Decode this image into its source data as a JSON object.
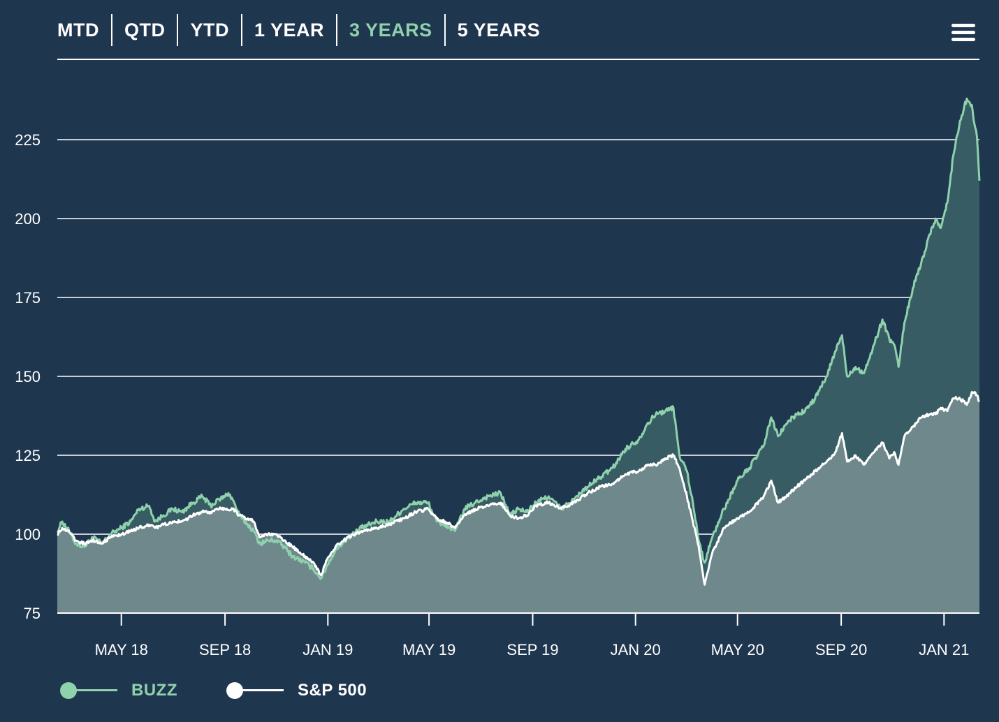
{
  "tabs": [
    {
      "label": "MTD",
      "active": false
    },
    {
      "label": "QTD",
      "active": false
    },
    {
      "label": "YTD",
      "active": false
    },
    {
      "label": "1 YEAR",
      "active": false
    },
    {
      "label": "3 YEARS",
      "active": true
    },
    {
      "label": "5 YEARS",
      "active": false
    }
  ],
  "menu_icon": "hamburger-menu-icon",
  "colors": {
    "background": "#1f364f",
    "buzz": "#8fd1ad",
    "sp500": "#ffffff",
    "buzz_fill": "#385c63",
    "sp500_fill": "#6e888b",
    "grid": "#ffffff"
  },
  "legend": [
    {
      "label": "BUZZ",
      "color": "#8fd1ad"
    },
    {
      "label": "S&P 500",
      "color": "#ffffff"
    }
  ],
  "chart_data": {
    "type": "area",
    "title": "",
    "xlabel": "",
    "ylabel": "",
    "ylim": [
      75,
      240
    ],
    "yticks": [
      75,
      100,
      125,
      150,
      175,
      200,
      225
    ],
    "xlim": [
      "2018-02-14",
      "2021-02-12"
    ],
    "xticks": [
      {
        "date": "2018-05-01",
        "label": "MAY 18"
      },
      {
        "date": "2018-09-01",
        "label": "SEP 18"
      },
      {
        "date": "2019-01-01",
        "label": "JAN 19"
      },
      {
        "date": "2019-05-01",
        "label": "MAY 19"
      },
      {
        "date": "2019-09-01",
        "label": "SEP 19"
      },
      {
        "date": "2020-01-01",
        "label": "JAN 20"
      },
      {
        "date": "2020-05-01",
        "label": "MAY 20"
      },
      {
        "date": "2020-09-01",
        "label": "SEP 20"
      },
      {
        "date": "2021-01-01",
        "label": "JAN 21"
      }
    ],
    "grid": true,
    "legend_position": "bottom-left",
    "series": [
      {
        "name": "BUZZ",
        "points": [
          [
            "2018-02-14",
            101
          ],
          [
            "2018-02-20",
            104
          ],
          [
            "2018-02-28",
            101
          ],
          [
            "2018-03-08",
            97
          ],
          [
            "2018-03-18",
            96
          ],
          [
            "2018-03-28",
            99
          ],
          [
            "2018-04-08",
            97
          ],
          [
            "2018-04-18",
            100
          ],
          [
            "2018-05-01",
            102
          ],
          [
            "2018-05-12",
            104
          ],
          [
            "2018-05-22",
            108
          ],
          [
            "2018-06-03",
            109
          ],
          [
            "2018-06-10",
            104
          ],
          [
            "2018-06-20",
            106
          ],
          [
            "2018-07-01",
            108
          ],
          [
            "2018-07-12",
            107
          ],
          [
            "2018-07-25",
            110
          ],
          [
            "2018-08-05",
            112
          ],
          [
            "2018-08-15",
            109
          ],
          [
            "2018-08-25",
            111
          ],
          [
            "2018-09-01",
            112
          ],
          [
            "2018-09-05",
            113
          ],
          [
            "2018-09-10",
            111
          ],
          [
            "2018-09-18",
            106
          ],
          [
            "2018-09-28",
            103
          ],
          [
            "2018-10-05",
            101
          ],
          [
            "2018-10-12",
            97
          ],
          [
            "2018-10-22",
            98
          ],
          [
            "2018-11-01",
            98
          ],
          [
            "2018-11-10",
            96
          ],
          [
            "2018-11-20",
            93
          ],
          [
            "2018-12-05",
            91
          ],
          [
            "2018-12-15",
            89
          ],
          [
            "2018-12-24",
            86
          ],
          [
            "2018-12-31",
            90
          ],
          [
            "2019-01-10",
            95
          ],
          [
            "2019-01-25",
            99
          ],
          [
            "2019-02-10",
            102
          ],
          [
            "2019-02-28",
            104
          ],
          [
            "2019-03-15",
            104
          ],
          [
            "2019-04-01",
            108
          ],
          [
            "2019-04-15",
            110
          ],
          [
            "2019-04-30",
            110
          ],
          [
            "2019-05-10",
            104
          ],
          [
            "2019-05-20",
            103
          ],
          [
            "2019-06-01",
            101
          ],
          [
            "2019-06-12",
            108
          ],
          [
            "2019-06-25",
            110
          ],
          [
            "2019-07-10",
            112
          ],
          [
            "2019-07-25",
            113
          ],
          [
            "2019-08-05",
            106
          ],
          [
            "2019-08-15",
            108
          ],
          [
            "2019-08-25",
            107
          ],
          [
            "2019-09-05",
            110
          ],
          [
            "2019-09-20",
            112
          ],
          [
            "2019-10-05",
            108
          ],
          [
            "2019-10-20",
            111
          ],
          [
            "2019-11-05",
            115
          ],
          [
            "2019-11-20",
            118
          ],
          [
            "2019-12-05",
            121
          ],
          [
            "2019-12-20",
            127
          ],
          [
            "2020-01-05",
            130
          ],
          [
            "2020-01-15",
            135
          ],
          [
            "2020-01-25",
            138
          ],
          [
            "2020-02-05",
            139
          ],
          [
            "2020-02-15",
            140
          ],
          [
            "2020-02-22",
            125
          ],
          [
            "2020-03-02",
            120
          ],
          [
            "2020-03-09",
            110
          ],
          [
            "2020-03-16",
            98
          ],
          [
            "2020-03-23",
            91
          ],
          [
            "2020-04-01",
            99
          ],
          [
            "2020-04-15",
            108
          ],
          [
            "2020-05-01",
            117
          ],
          [
            "2020-05-15",
            121
          ],
          [
            "2020-06-01",
            128
          ],
          [
            "2020-06-10",
            137
          ],
          [
            "2020-06-18",
            131
          ],
          [
            "2020-06-28",
            135
          ],
          [
            "2020-07-10",
            138
          ],
          [
            "2020-07-20",
            139
          ],
          [
            "2020-08-01",
            143
          ],
          [
            "2020-08-15",
            150
          ],
          [
            "2020-08-25",
            158
          ],
          [
            "2020-09-02",
            163
          ],
          [
            "2020-09-08",
            150
          ],
          [
            "2020-09-18",
            153
          ],
          [
            "2020-09-28",
            151
          ],
          [
            "2020-10-10",
            160
          ],
          [
            "2020-10-20",
            168
          ],
          [
            "2020-10-28",
            162
          ],
          [
            "2020-11-03",
            160
          ],
          [
            "2020-11-08",
            153
          ],
          [
            "2020-11-15",
            167
          ],
          [
            "2020-11-25",
            178
          ],
          [
            "2020-12-05",
            186
          ],
          [
            "2020-12-15",
            195
          ],
          [
            "2020-12-22",
            200
          ],
          [
            "2020-12-28",
            197
          ],
          [
            "2021-01-05",
            205
          ],
          [
            "2021-01-12",
            220
          ],
          [
            "2021-01-20",
            231
          ],
          [
            "2021-01-28",
            238
          ],
          [
            "2021-02-03",
            236
          ],
          [
            "2021-02-06",
            230
          ],
          [
            "2021-02-09",
            226
          ],
          [
            "2021-02-12",
            212
          ]
        ]
      },
      {
        "name": "S&P 500",
        "points": [
          [
            "2018-02-14",
            100
          ],
          [
            "2018-02-20",
            102
          ],
          [
            "2018-02-28",
            101
          ],
          [
            "2018-03-08",
            98
          ],
          [
            "2018-03-18",
            97
          ],
          [
            "2018-03-28",
            98
          ],
          [
            "2018-04-08",
            97
          ],
          [
            "2018-04-18",
            99
          ],
          [
            "2018-05-01",
            100
          ],
          [
            "2018-05-12",
            101
          ],
          [
            "2018-05-22",
            102
          ],
          [
            "2018-06-03",
            103
          ],
          [
            "2018-06-10",
            102
          ],
          [
            "2018-06-20",
            103
          ],
          [
            "2018-07-01",
            104
          ],
          [
            "2018-07-12",
            104
          ],
          [
            "2018-07-25",
            106
          ],
          [
            "2018-08-05",
            107
          ],
          [
            "2018-08-15",
            107
          ],
          [
            "2018-08-25",
            108
          ],
          [
            "2018-09-01",
            108
          ],
          [
            "2018-09-10",
            108
          ],
          [
            "2018-09-18",
            106
          ],
          [
            "2018-09-28",
            105
          ],
          [
            "2018-10-05",
            104
          ],
          [
            "2018-10-12",
            99
          ],
          [
            "2018-10-22",
            100
          ],
          [
            "2018-11-01",
            100
          ],
          [
            "2018-11-10",
            98
          ],
          [
            "2018-11-20",
            96
          ],
          [
            "2018-12-05",
            93
          ],
          [
            "2018-12-15",
            91
          ],
          [
            "2018-12-24",
            87
          ],
          [
            "2018-12-31",
            92
          ],
          [
            "2019-01-10",
            96
          ],
          [
            "2019-01-25",
            99
          ],
          [
            "2019-02-10",
            101
          ],
          [
            "2019-02-28",
            102
          ],
          [
            "2019-03-15",
            103
          ],
          [
            "2019-04-01",
            105
          ],
          [
            "2019-04-15",
            107
          ],
          [
            "2019-04-30",
            108
          ],
          [
            "2019-05-10",
            105
          ],
          [
            "2019-05-20",
            104
          ],
          [
            "2019-06-01",
            102
          ],
          [
            "2019-06-12",
            106
          ],
          [
            "2019-06-25",
            108
          ],
          [
            "2019-07-10",
            109
          ],
          [
            "2019-07-25",
            110
          ],
          [
            "2019-08-05",
            106
          ],
          [
            "2019-08-15",
            105
          ],
          [
            "2019-08-25",
            106
          ],
          [
            "2019-09-05",
            109
          ],
          [
            "2019-09-20",
            110
          ],
          [
            "2019-10-05",
            108
          ],
          [
            "2019-10-20",
            110
          ],
          [
            "2019-11-05",
            113
          ],
          [
            "2019-11-20",
            115
          ],
          [
            "2019-12-05",
            116
          ],
          [
            "2019-12-20",
            119
          ],
          [
            "2020-01-05",
            120
          ],
          [
            "2020-01-15",
            122
          ],
          [
            "2020-01-25",
            122
          ],
          [
            "2020-02-05",
            124
          ],
          [
            "2020-02-15",
            125
          ],
          [
            "2020-02-22",
            121
          ],
          [
            "2020-03-02",
            112
          ],
          [
            "2020-03-09",
            104
          ],
          [
            "2020-03-16",
            96
          ],
          [
            "2020-03-23",
            84
          ],
          [
            "2020-04-01",
            94
          ],
          [
            "2020-04-15",
            102
          ],
          [
            "2020-05-01",
            105
          ],
          [
            "2020-05-15",
            107
          ],
          [
            "2020-06-01",
            112
          ],
          [
            "2020-06-10",
            117
          ],
          [
            "2020-06-18",
            110
          ],
          [
            "2020-06-28",
            112
          ],
          [
            "2020-07-10",
            115
          ],
          [
            "2020-07-20",
            117
          ],
          [
            "2020-08-01",
            120
          ],
          [
            "2020-08-15",
            123
          ],
          [
            "2020-08-25",
            126
          ],
          [
            "2020-09-02",
            132
          ],
          [
            "2020-09-08",
            123
          ],
          [
            "2020-09-18",
            125
          ],
          [
            "2020-09-28",
            122
          ],
          [
            "2020-10-10",
            126
          ],
          [
            "2020-10-20",
            129
          ],
          [
            "2020-10-28",
            124
          ],
          [
            "2020-11-03",
            126
          ],
          [
            "2020-11-08",
            122
          ],
          [
            "2020-11-15",
            131
          ],
          [
            "2020-11-25",
            134
          ],
          [
            "2020-12-05",
            137
          ],
          [
            "2020-12-15",
            138
          ],
          [
            "2020-12-22",
            138
          ],
          [
            "2020-12-28",
            140
          ],
          [
            "2021-01-05",
            139
          ],
          [
            "2021-01-12",
            143
          ],
          [
            "2021-01-20",
            143
          ],
          [
            "2021-01-28",
            141
          ],
          [
            "2021-02-03",
            145
          ],
          [
            "2021-02-06",
            145
          ],
          [
            "2021-02-09",
            144
          ],
          [
            "2021-02-12",
            142
          ]
        ]
      }
    ]
  }
}
